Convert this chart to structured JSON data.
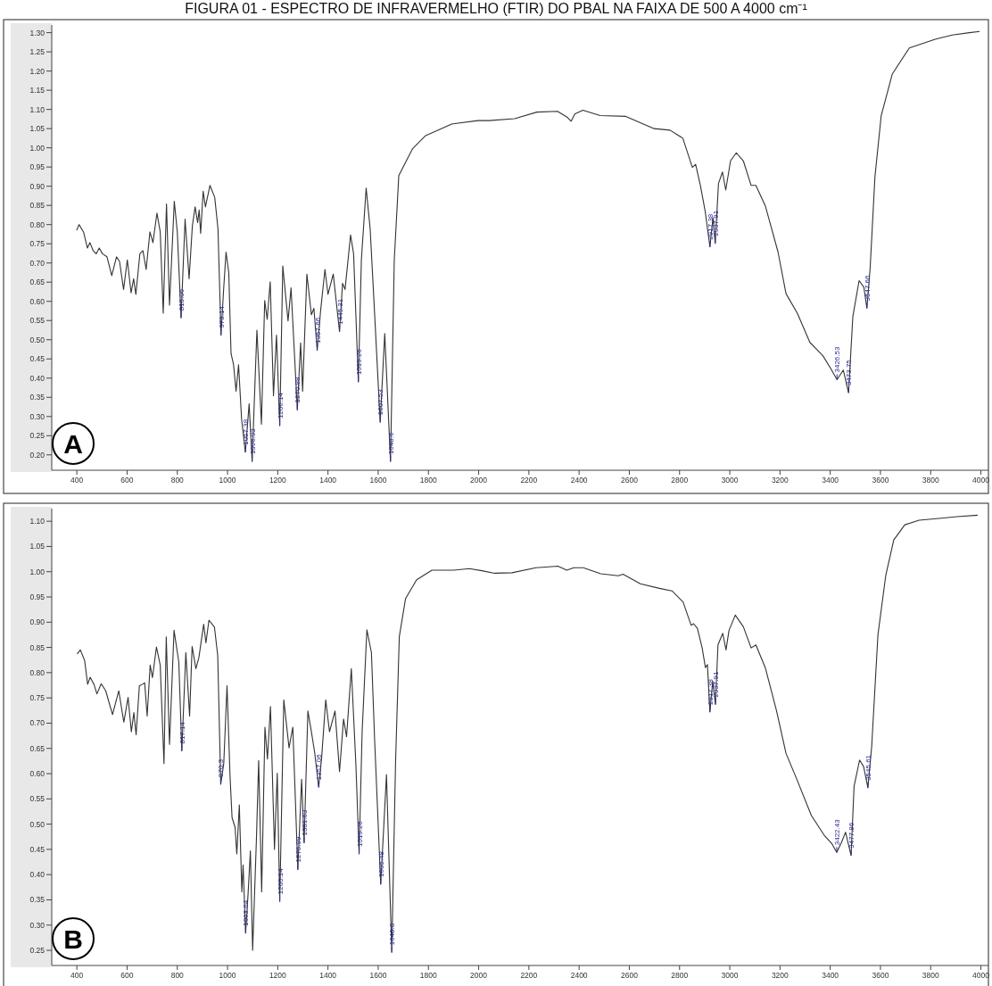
{
  "chart_data": [
    {
      "type": "line",
      "title": "FIGURA 01 - ESPECTRO DE INFRAVERMELHO (FTIR) DO PBAL NA FAIXA DE 500 A 4000 cm⁻¹",
      "xlim": [
        300,
        4030
      ],
      "ylim": [
        0.16,
        1.32
      ],
      "xticks": [
        400,
        600,
        800,
        1000,
        1200,
        1400,
        1600,
        1800,
        2000,
        2200,
        2400,
        2600,
        2800,
        3000,
        3200,
        3400,
        3600,
        3800,
        4000
      ],
      "yticks": [
        {
          "value": 0.2,
          "label": "0.20"
        },
        {
          "value": 0.25,
          "label": "0.25"
        },
        {
          "value": 0.3,
          "label": "0.30"
        },
        {
          "value": 0.35,
          "label": "0.35"
        },
        {
          "value": 0.4,
          "label": "0.40"
        },
        {
          "value": 0.45,
          "label": "0.45"
        },
        {
          "value": 0.5,
          "label": "0.50"
        },
        {
          "value": 0.55,
          "label": "0.55"
        },
        {
          "value": 0.6,
          "label": "0.60"
        },
        {
          "value": 0.65,
          "label": "0.65"
        },
        {
          "value": 0.7,
          "label": "0.70"
        },
        {
          "value": 0.75,
          "label": "0.75"
        },
        {
          "value": 0.8,
          "label": "0.80"
        },
        {
          "value": 0.85,
          "label": "0.85"
        },
        {
          "value": 0.9,
          "label": "0.90"
        },
        {
          "value": 0.95,
          "label": "0.95"
        },
        {
          "value": 1.0,
          "label": "1.00"
        },
        {
          "value": 1.05,
          "label": "1.05"
        },
        {
          "value": 1.1,
          "label": "1.10"
        },
        {
          "value": 1.15,
          "label": "1.15"
        },
        {
          "value": 1.2,
          "label": "1.20"
        },
        {
          "value": 1.25,
          "label": "1.25"
        },
        {
          "value": 1.3,
          "label": "1.30"
        }
      ],
      "series": [
        {
          "color": "#333333",
          "x": [
            399,
            409,
            427,
            442,
            452,
            465,
            477,
            489,
            502,
            520,
            539,
            558,
            570,
            586,
            601,
            616,
            626,
            635,
            651,
            663,
            676,
            691,
            703,
            719,
            732,
            744,
            757,
            769,
            788,
            800,
            815,
            831,
            847,
            860,
            871,
            881,
            887,
            893,
            903,
            912,
            930,
            949,
            962,
            974,
            984,
            994,
            1005,
            1014,
            1024,
            1034,
            1044,
            1056,
            1071,
            1086,
            1098,
            1117,
            1135,
            1148,
            1158,
            1170,
            1183,
            1195,
            1208,
            1220,
            1241,
            1253,
            1278,
            1291,
            1299,
            1316,
            1334,
            1344,
            1357,
            1371,
            1388,
            1400,
            1421,
            1446,
            1458,
            1468,
            1490,
            1502,
            1521,
            1533,
            1552,
            1568,
            1583,
            1608,
            1626,
            1649,
            1664,
            1682,
            1737,
            1789,
            1893,
            1997,
            2042,
            2143,
            2232,
            2314,
            2352,
            2368,
            2383,
            2415,
            2484,
            2586,
            2699,
            2762,
            2813,
            2851,
            2864,
            2883,
            2902,
            2921,
            2933,
            2942,
            2955,
            2971,
            2984,
            3003,
            3026,
            3054,
            3085,
            3104,
            3142,
            3192,
            3224,
            3269,
            3319,
            3370,
            3401,
            3427,
            3452,
            3473,
            3490,
            3515,
            3534,
            3546,
            3559,
            3578,
            3603,
            3647,
            3715,
            3818,
            3886,
            3954,
            3995
          ],
          "values": [
            0.785,
            0.8,
            0.78,
            0.739,
            0.753,
            0.732,
            0.724,
            0.739,
            0.724,
            0.716,
            0.667,
            0.716,
            0.704,
            0.631,
            0.708,
            0.622,
            0.659,
            0.618,
            0.724,
            0.732,
            0.683,
            0.781,
            0.753,
            0.83,
            0.781,
            0.569,
            0.854,
            0.59,
            0.861,
            0.781,
            0.557,
            0.814,
            0.659,
            0.797,
            0.846,
            0.805,
            0.838,
            0.777,
            0.887,
            0.846,
            0.902,
            0.871,
            0.789,
            0.512,
            0.626,
            0.728,
            0.675,
            0.464,
            0.435,
            0.366,
            0.435,
            0.293,
            0.207,
            0.333,
            0.183,
            0.525,
            0.28,
            0.602,
            0.553,
            0.651,
            0.354,
            0.512,
            0.276,
            0.692,
            0.549,
            0.635,
            0.317,
            0.492,
            0.366,
            0.671,
            0.565,
            0.582,
            0.472,
            0.578,
            0.683,
            0.618,
            0.671,
            0.521,
            0.647,
            0.631,
            0.773,
            0.724,
            0.39,
            0.708,
            0.895,
            0.789,
            0.602,
            0.285,
            0.516,
            0.183,
            0.708,
            0.928,
            0.998,
            1.032,
            1.062,
            1.071,
            1.071,
            1.076,
            1.093,
            1.095,
            1.08,
            1.069,
            1.088,
            1.098,
            1.084,
            1.082,
            1.05,
            1.046,
            1.025,
            0.949,
            0.957,
            0.902,
            0.835,
            0.742,
            0.818,
            0.751,
            0.907,
            0.937,
            0.89,
            0.966,
            0.987,
            0.966,
            0.902,
            0.902,
            0.848,
            0.729,
            0.62,
            0.569,
            0.493,
            0.459,
            0.426,
            0.396,
            0.421,
            0.362,
            0.56,
            0.654,
            0.637,
            0.582,
            0.687,
            0.924,
            1.084,
            1.192,
            1.26,
            1.283,
            1.294,
            1.3,
            1.303
          ]
        }
      ],
      "annotations": [
        "A",
        {
          "text": "815.06",
          "x": 815,
          "y": 0.557
        },
        {
          "text": "973.14",
          "x": 974,
          "y": 0.512
        },
        {
          "text": "1057.38",
          "x": 1071,
          "y": 0.207
        },
        {
          "text": "1096.93",
          "x": 1098,
          "y": 0.183
        },
        {
          "text": "1206.14",
          "x": 1208,
          "y": 0.276
        },
        {
          "text": "1270.98",
          "x": 1278,
          "y": 0.317
        },
        {
          "text": "1357.66",
          "x": 1357,
          "y": 0.472
        },
        {
          "text": "1445.31",
          "x": 1446,
          "y": 0.521
        },
        {
          "text": "1519.26",
          "x": 1521,
          "y": 0.39
        },
        {
          "text": "1607.53",
          "x": 1608,
          "y": 0.285
        },
        {
          "text": "1648.6",
          "x": 1649,
          "y": 0.183
        },
        {
          "text": "2917.38",
          "x": 2921,
          "y": 0.742
        },
        {
          "text": "2937.91",
          "x": 2942,
          "y": 0.751
        },
        {
          "text": "3426.53",
          "x": 3427,
          "y": 0.396
        },
        {
          "text": "3473.75",
          "x": 3473,
          "y": 0.362
        },
        {
          "text": "3547.66",
          "x": 3546,
          "y": 0.582
        }
      ]
    },
    {
      "type": "line",
      "xlim": [
        300,
        4030
      ],
      "ylim": [
        0.22,
        1.125
      ],
      "xticks": [
        400,
        600,
        800,
        1000,
        1200,
        1400,
        1600,
        1800,
        2000,
        2200,
        2400,
        2600,
        2800,
        3000,
        3200,
        3400,
        3600,
        3800,
        4000
      ],
      "yticks": [
        {
          "value": 0.25,
          "label": "0.25"
        },
        {
          "value": 0.3,
          "label": "0.30"
        },
        {
          "value": 0.35,
          "label": "0.35"
        },
        {
          "value": 0.4,
          "label": "0.40"
        },
        {
          "value": 0.45,
          "label": "0.45"
        },
        {
          "value": 0.5,
          "label": "0.50"
        },
        {
          "value": 0.55,
          "label": "0.55"
        },
        {
          "value": 0.6,
          "label": "0.60"
        },
        {
          "value": 0.65,
          "label": "0.65"
        },
        {
          "value": 0.7,
          "label": "0.70"
        },
        {
          "value": 0.75,
          "label": "0.75"
        },
        {
          "value": 0.8,
          "label": "0.80"
        },
        {
          "value": 0.85,
          "label": "0.85"
        },
        {
          "value": 0.9,
          "label": "0.90"
        },
        {
          "value": 0.95,
          "label": "0.95"
        },
        {
          "value": 1.0,
          "label": "1.00"
        },
        {
          "value": 1.05,
          "label": "1.05"
        },
        {
          "value": 1.1,
          "label": "1.10"
        }
      ],
      "series": [
        {
          "color": "#333333",
          "x": [
            401,
            414,
            431,
            443,
            453,
            468,
            480,
            497,
            515,
            542,
            567,
            587,
            604,
            617,
            627,
            636,
            649,
            661,
            670,
            680,
            692,
            701,
            717,
            732,
            747,
            756,
            769,
            787,
            806,
            818,
            834,
            849,
            859,
            874,
            886,
            905,
            914,
            926,
            948,
            961,
            973,
            985,
            998,
            1010,
            1018,
            1030,
            1037,
            1047,
            1057,
            1062,
            1072,
            1082,
            1091,
            1100,
            1115,
            1124,
            1136,
            1149,
            1159,
            1171,
            1187,
            1198,
            1208,
            1224,
            1245,
            1260,
            1280,
            1295,
            1305,
            1320,
            1334,
            1347,
            1363,
            1375,
            1391,
            1406,
            1428,
            1446,
            1462,
            1474,
            1493,
            1511,
            1524,
            1536,
            1555,
            1573,
            1586,
            1610,
            1633,
            1654,
            1669,
            1684,
            1709,
            1753,
            1814,
            1901,
            1963,
            2013,
            2064,
            2133,
            2228,
            2316,
            2351,
            2379,
            2417,
            2486,
            2556,
            2575,
            2644,
            2720,
            2770,
            2814,
            2846,
            2856,
            2871,
            2890,
            2903,
            2911,
            2921,
            2932,
            2943,
            2953,
            2972,
            2985,
            2997,
            3022,
            3054,
            3085,
            3104,
            3142,
            3186,
            3224,
            3262,
            3325,
            3376,
            3407,
            3426,
            3445,
            3461,
            3483,
            3495,
            3517,
            3533,
            3550,
            3565,
            3590,
            3621,
            3653,
            3697,
            3754,
            3842,
            3905,
            3987
          ],
          "values": [
            0.837,
            0.845,
            0.824,
            0.777,
            0.791,
            0.777,
            0.758,
            0.778,
            0.764,
            0.717,
            0.764,
            0.702,
            0.751,
            0.683,
            0.721,
            0.677,
            0.774,
            0.777,
            0.78,
            0.714,
            0.815,
            0.79,
            0.851,
            0.815,
            0.62,
            0.871,
            0.658,
            0.884,
            0.821,
            0.645,
            0.84,
            0.714,
            0.852,
            0.808,
            0.83,
            0.896,
            0.859,
            0.904,
            0.89,
            0.834,
            0.579,
            0.62,
            0.774,
            0.595,
            0.513,
            0.494,
            0.441,
            0.538,
            0.366,
            0.419,
            0.284,
            0.363,
            0.447,
            0.25,
            0.469,
            0.626,
            0.366,
            0.692,
            0.629,
            0.733,
            0.45,
            0.601,
            0.347,
            0.746,
            0.651,
            0.692,
            0.41,
            0.589,
            0.463,
            0.724,
            0.683,
            0.642,
            0.573,
            0.633,
            0.746,
            0.683,
            0.724,
            0.604,
            0.708,
            0.673,
            0.808,
            0.62,
            0.441,
            0.683,
            0.885,
            0.84,
            0.664,
            0.381,
            0.598,
            0.246,
            0.62,
            0.871,
            0.947,
            0.984,
            1.003,
            1.003,
            1.006,
            1.002,
            0.997,
            0.998,
            1.008,
            1.011,
            1.003,
            1.008,
            1.008,
            0.996,
            0.992,
            0.995,
            0.976,
            0.967,
            0.962,
            0.94,
            0.894,
            0.897,
            0.888,
            0.849,
            0.81,
            0.816,
            0.722,
            0.783,
            0.737,
            0.855,
            0.878,
            0.845,
            0.884,
            0.914,
            0.891,
            0.849,
            0.855,
            0.809,
            0.725,
            0.64,
            0.595,
            0.517,
            0.478,
            0.461,
            0.444,
            0.464,
            0.484,
            0.438,
            0.575,
            0.627,
            0.614,
            0.572,
            0.653,
            0.875,
            0.992,
            1.063,
            1.093,
            1.102,
            1.106,
            1.109,
            1.112
          ]
        }
      ],
      "annotations": [
        "B",
        {
          "text": "817.14",
          "x": 818,
          "y": 0.645
        },
        {
          "text": "970.3",
          "x": 973,
          "y": 0.579
        },
        {
          "text": "1063.64",
          "x": 1072,
          "y": 0.284
        },
        {
          "text": "1205.14",
          "x": 1208,
          "y": 0.347
        },
        {
          "text": "1276.99",
          "x": 1280,
          "y": 0.41
        },
        {
          "text": "1301.63",
          "x": 1305,
          "y": 0.463
        },
        {
          "text": "1357.06",
          "x": 1363,
          "y": 0.573
        },
        {
          "text": "1519.26",
          "x": 1524,
          "y": 0.441
        },
        {
          "text": "1605.48",
          "x": 1610,
          "y": 0.381
        },
        {
          "text": "1648.0",
          "x": 1654,
          "y": 0.246
        },
        {
          "text": "2917.38",
          "x": 2921,
          "y": 0.722
        },
        {
          "text": "2937.91",
          "x": 2943,
          "y": 0.737
        },
        {
          "text": "3422.43",
          "x": 3426,
          "y": 0.444
        },
        {
          "text": "3477.86",
          "x": 3483,
          "y": 0.438
        },
        {
          "text": "3545.61",
          "x": 3550,
          "y": 0.572
        }
      ]
    }
  ]
}
